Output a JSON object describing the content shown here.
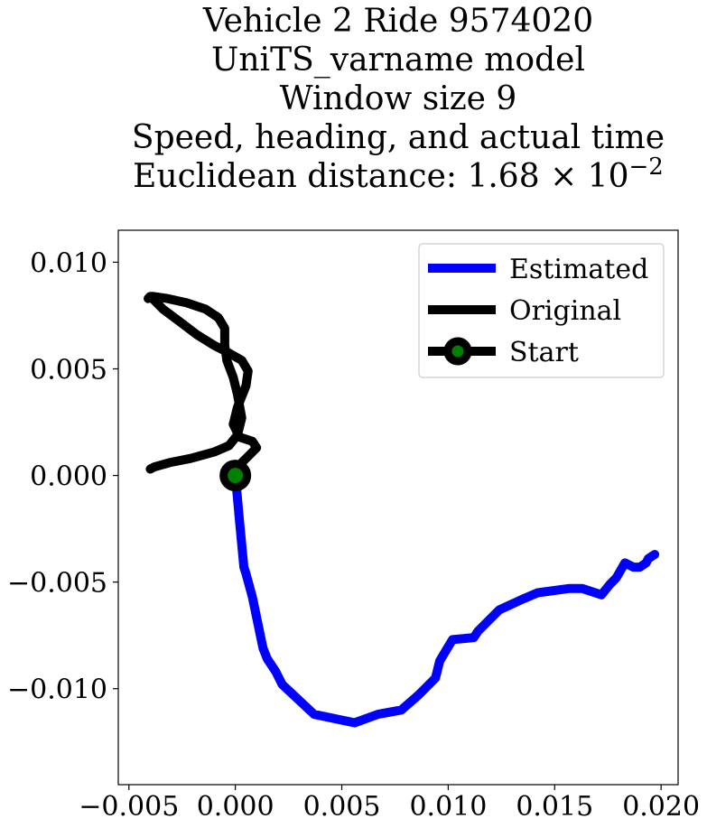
{
  "chart_data": {
    "type": "line",
    "title_lines": [
      "Vehicle 2 Ride 9574020",
      "UniTS_varname model",
      "Window size 9",
      "Speed, heading, and actual time"
    ],
    "title_last_line": {
      "text": "Euclidean distance: 1.68",
      "times": "×",
      "base": "10",
      "exponent": "−2"
    },
    "xlim": [
      -0.0055,
      0.0208
    ],
    "ylim": [
      -0.0145,
      0.0115
    ],
    "xticks": [
      -0.005,
      0.0,
      0.005,
      0.01,
      0.015,
      0.02
    ],
    "xtick_labels": [
      "−0.005",
      "0.000",
      "0.005",
      "0.010",
      "0.015",
      "0.020"
    ],
    "yticks": [
      0.01,
      0.005,
      0.0,
      -0.005,
      -0.01
    ],
    "ytick_labels": [
      "0.010",
      "0.005",
      "0.000",
      "−0.005",
      "−0.010"
    ],
    "grid": false,
    "legend_position": "top-right",
    "series": [
      {
        "name": "Estimated",
        "color": "#0000ff",
        "x": [
          0.0,
          0.0002,
          0.0004,
          0.0005,
          0.0005,
          0.0008,
          0.0013,
          0.0015,
          0.0019,
          0.0022,
          0.0037,
          0.0056,
          0.0067,
          0.0078,
          0.0086,
          0.0094,
          0.0096,
          0.0102,
          0.0112,
          0.0114,
          0.0124,
          0.0135,
          0.0142,
          0.0157,
          0.0163,
          0.0172,
          0.0176,
          0.0179,
          0.0183,
          0.0187,
          0.019,
          0.0193,
          0.0194,
          0.0197
        ],
        "y": [
          0.0,
          -0.0022,
          -0.0043,
          -0.0046,
          -0.0046,
          -0.0057,
          -0.0081,
          -0.0086,
          -0.0092,
          -0.0098,
          -0.0112,
          -0.0116,
          -0.0112,
          -0.011,
          -0.0103,
          -0.0095,
          -0.0087,
          -0.0077,
          -0.0076,
          -0.0073,
          -0.0063,
          -0.0058,
          -0.0055,
          -0.0053,
          -0.0053,
          -0.0056,
          -0.0051,
          -0.0048,
          -0.0041,
          -0.0043,
          -0.0043,
          -0.0041,
          -0.0039,
          -0.0037
        ]
      },
      {
        "name": "Original",
        "color": "#000000",
        "x": [
          0.0,
          0.0003,
          0.0007,
          0.001,
          0.0008,
          0.0002,
          -0.0001,
          0.0001,
          0.0005,
          0.0006,
          0.0003,
          -0.0004,
          -0.001,
          -0.0018,
          -0.0026,
          -0.0034,
          -0.0038,
          -0.004,
          -0.0041,
          -0.0039,
          -0.0032,
          -0.0023,
          -0.0014,
          -0.0008,
          -0.0005,
          -0.0005,
          -0.0004,
          -0.0001,
          0.0001,
          0.0003,
          0.0001,
          -0.0003,
          -0.001,
          -0.0021,
          -0.0031,
          -0.0038,
          -0.004
        ],
        "y": [
          0.0,
          0.0006,
          0.001,
          0.0013,
          0.0016,
          0.0018,
          0.0024,
          0.0032,
          0.0042,
          0.0049,
          0.0054,
          0.0058,
          0.0061,
          0.0066,
          0.0072,
          0.0078,
          0.0082,
          0.0084,
          0.0083,
          0.0084,
          0.0083,
          0.0081,
          0.0078,
          0.0074,
          0.0069,
          0.0061,
          0.0054,
          0.0046,
          0.0038,
          0.0027,
          0.0019,
          0.0014,
          0.0011,
          0.0008,
          0.0006,
          0.0004,
          0.0003
        ]
      }
    ],
    "start": {
      "name": "Start",
      "x": 0.0,
      "y": 0.0,
      "marker_color": "#008000",
      "edge_color": "#000000"
    }
  }
}
